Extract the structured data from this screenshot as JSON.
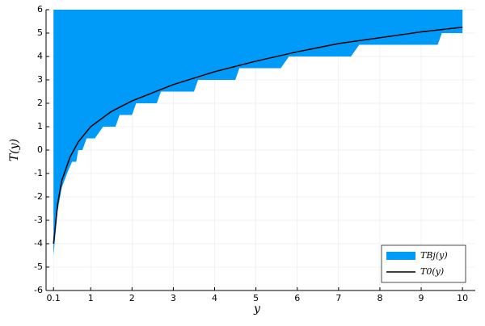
{
  "chart_data": {
    "type": "line",
    "x_label": "y",
    "y_label": "T(y)",
    "xlim": [
      -0.08,
      10.31
    ],
    "ylim": [
      -6,
      6
    ],
    "xticks": [
      0.1,
      1,
      2,
      3,
      4,
      5,
      6,
      7,
      8,
      9,
      10
    ],
    "yticks": [
      -6,
      -5,
      -4,
      -3,
      -2,
      -1,
      0,
      1,
      2,
      3,
      4,
      5,
      6
    ],
    "grid": true,
    "legend": "bottom-right",
    "series": [
      {
        "name": "TBj(y)",
        "color": "#009af9",
        "kind": "area",
        "x": [
          0.1,
          0.2,
          0.3,
          0.45,
          0.55,
          0.65,
          0.7,
          0.8,
          0.9,
          1.1,
          1.3,
          1.6,
          1.7,
          2.0,
          2.1,
          2.6,
          2.7,
          3.5,
          3.6,
          4.5,
          4.6,
          5.6,
          5.8,
          7.3,
          7.5,
          9.4,
          9.5,
          10
        ],
        "values": [
          -4.5,
          -2.6,
          -1.6,
          -0.9,
          -0.5,
          -0.5,
          0,
          0,
          0.5,
          0.5,
          1,
          1,
          1.5,
          1.5,
          2,
          2,
          2.5,
          2.5,
          3,
          3,
          3.5,
          3.5,
          4,
          4,
          4.5,
          4.5,
          5,
          5
        ]
      },
      {
        "name": "T0(y)",
        "color": "#000000",
        "kind": "line",
        "x": [
          0.1,
          0.2,
          0.3,
          0.5,
          0.7,
          1,
          1.5,
          2,
          3,
          4,
          5,
          6,
          7,
          8,
          9,
          10
        ],
        "values": [
          -4,
          -2.3,
          -1.3,
          -0.3,
          0.35,
          1.0,
          1.65,
          2.1,
          2.8,
          3.35,
          3.8,
          4.2,
          4.55,
          4.8,
          5.05,
          5.25
        ]
      }
    ]
  }
}
